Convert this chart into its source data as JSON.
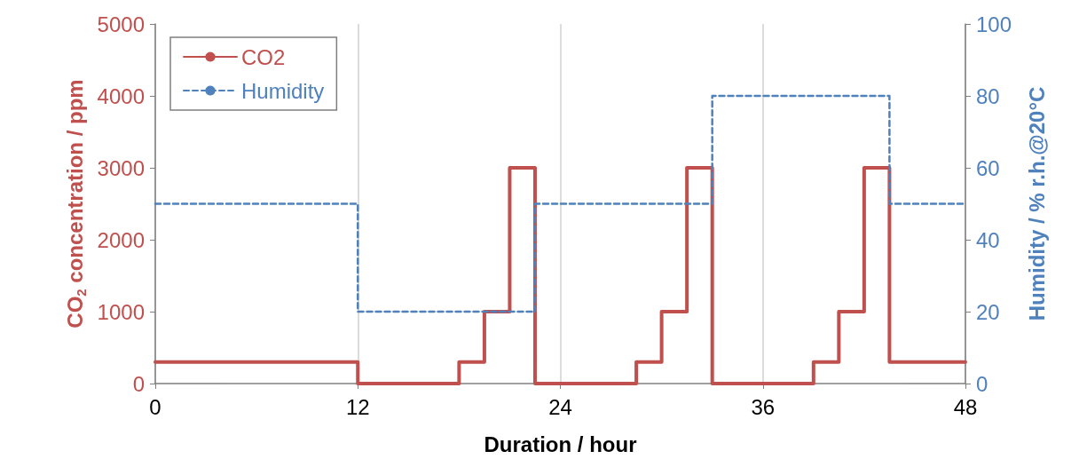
{
  "chart_data": {
    "type": "step",
    "xlabel": "Duration / hour",
    "ylabel": "CO$_{2}$ concentration / ppm",
    "y2label": "Humidity / % r.h.@20°C",
    "xlim": [
      0,
      48
    ],
    "xticks": [
      0,
      12,
      24,
      36,
      48
    ],
    "ylim": [
      0,
      5000
    ],
    "yticks": [
      0,
      1000,
      2000,
      3000,
      4000,
      5000
    ],
    "y2lim": [
      0,
      100
    ],
    "y2ticks": [
      0,
      20,
      40,
      60,
      80,
      100
    ],
    "grid": "x",
    "legend": "top left",
    "marker": "none",
    "series": [
      {
        "name": "CO2",
        "color": "#c0504d",
        "line_style": "solid",
        "x": [
          0,
          12,
          18,
          19.5,
          21,
          22.5,
          28.5,
          30,
          31.5,
          33,
          39,
          40.5,
          42,
          43.5,
          48
        ],
        "values": [
          300,
          0,
          300,
          1000,
          3000,
          0,
          300,
          1000,
          3000,
          0,
          300,
          1000,
          3000,
          300,
          300
        ]
      },
      {
        "name": "Humidity",
        "color": "#4f81bd",
        "line_style": "dashed",
        "axis": "y2",
        "x": [
          0,
          12,
          22.5,
          33,
          43.5,
          48
        ],
        "values": [
          50,
          20,
          50,
          80,
          50,
          50
        ]
      }
    ]
  }
}
